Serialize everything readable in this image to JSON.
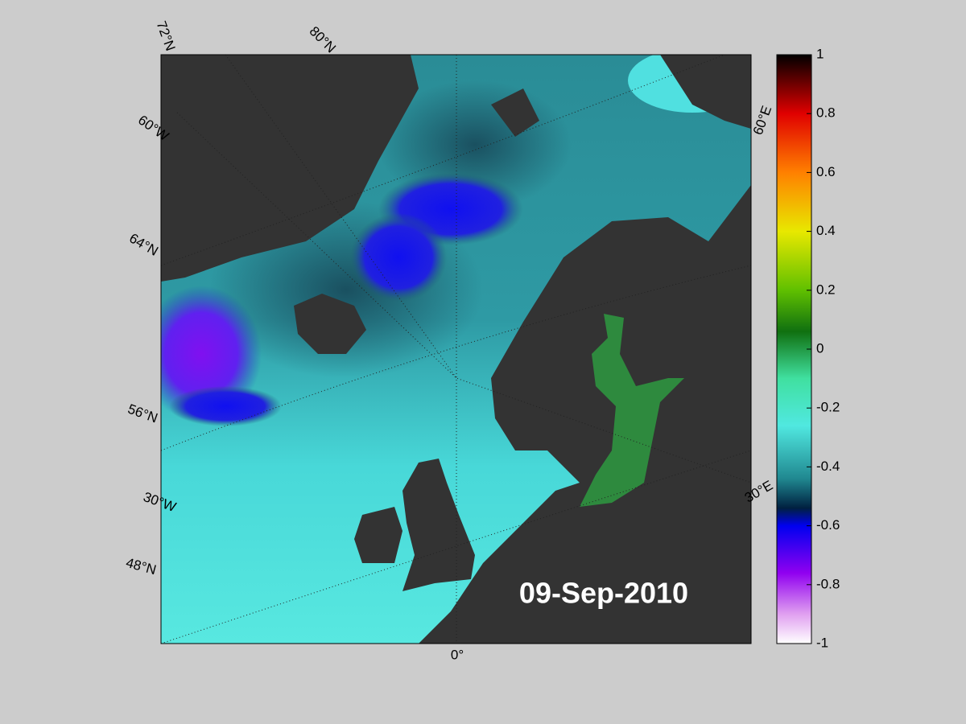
{
  "map": {
    "date": "09-Sep-2010",
    "graticule_labels": [
      "72°N",
      "80°N",
      "60°W",
      "64°N",
      "56°N",
      "30°W",
      "48°N",
      "0°",
      "60°E",
      "30°E"
    ],
    "colorbar": {
      "range": [
        -1,
        1
      ],
      "ticks": [
        1,
        0.8,
        0.6,
        0.4,
        0.2,
        0,
        -0.2,
        -0.4,
        -0.6,
        -0.8,
        -1
      ]
    }
  }
}
